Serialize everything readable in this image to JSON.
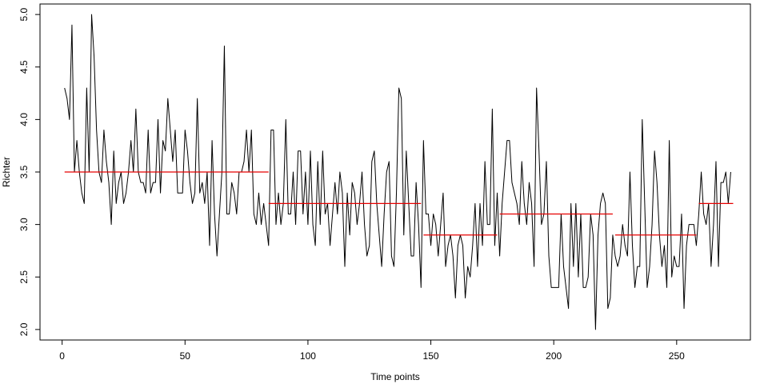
{
  "chart_data": {
    "type": "line",
    "xlabel": "Time points",
    "ylabel": "Richter",
    "xlim": [
      -9,
      280
    ],
    "ylim": [
      1.9,
      5.1
    ],
    "x_ticks": [
      0,
      50,
      100,
      150,
      200,
      250
    ],
    "y_ticks": [
      2.0,
      2.5,
      3.0,
      3.5,
      4.0,
      4.5,
      5.0
    ],
    "y_tick_labels": [
      "2.0",
      "2.5",
      "3.0",
      "3.5",
      "4.0",
      "4.5",
      "5.0"
    ],
    "grid": false,
    "legend": "none",
    "series": [
      {
        "role": "observations",
        "color": "#000000",
        "x_start": 1,
        "values": [
          4.3,
          4.2,
          4.0,
          4.9,
          3.5,
          3.8,
          3.5,
          3.3,
          3.2,
          4.3,
          3.5,
          5.0,
          4.6,
          3.9,
          3.5,
          3.4,
          3.9,
          3.6,
          3.4,
          3.0,
          3.7,
          3.2,
          3.4,
          3.5,
          3.2,
          3.3,
          3.5,
          3.8,
          3.5,
          4.1,
          3.5,
          3.4,
          3.4,
          3.3,
          3.9,
          3.3,
          3.4,
          3.4,
          4.0,
          3.3,
          3.8,
          3.7,
          4.2,
          3.9,
          3.6,
          3.9,
          3.3,
          3.3,
          3.3,
          3.9,
          3.7,
          3.4,
          3.2,
          3.3,
          4.2,
          3.3,
          3.4,
          3.2,
          3.5,
          2.8,
          3.8,
          3.1,
          2.7,
          3.1,
          3.5,
          4.7,
          3.1,
          3.1,
          3.4,
          3.3,
          3.1,
          3.5,
          3.5,
          3.6,
          3.9,
          3.5,
          3.9,
          3.1,
          3.0,
          3.3,
          3.0,
          3.2,
          3.0,
          2.8,
          3.9,
          3.9,
          3.0,
          3.3,
          3.0,
          3.2,
          4.0,
          3.1,
          3.1,
          3.5,
          3.0,
          3.7,
          3.7,
          3.1,
          3.5,
          3.0,
          3.7,
          3.0,
          2.8,
          3.6,
          3.0,
          3.7,
          3.1,
          3.2,
          2.8,
          3.1,
          3.4,
          3.1,
          3.5,
          3.3,
          2.6,
          3.3,
          2.9,
          3.4,
          3.3,
          3.0,
          3.2,
          3.5,
          3.0,
          2.7,
          2.8,
          3.6,
          3.7,
          3.2,
          2.9,
          2.6,
          3.1,
          3.5,
          3.6,
          2.7,
          2.6,
          3.3,
          4.3,
          4.2,
          2.9,
          3.7,
          3.2,
          2.7,
          2.7,
          3.4,
          3.0,
          2.4,
          3.8,
          3.1,
          3.1,
          2.8,
          3.1,
          3.0,
          2.7,
          3.0,
          3.3,
          2.6,
          2.8,
          2.9,
          2.7,
          2.3,
          2.8,
          2.9,
          2.8,
          2.3,
          2.6,
          2.5,
          2.8,
          3.2,
          2.6,
          3.2,
          2.8,
          3.6,
          3.0,
          3.0,
          4.1,
          2.8,
          3.3,
          2.7,
          3.2,
          3.5,
          3.8,
          3.8,
          3.4,
          3.3,
          3.2,
          3.0,
          3.6,
          3.2,
          3.0,
          3.4,
          3.2,
          2.6,
          4.3,
          3.7,
          3.0,
          3.1,
          3.6,
          2.7,
          2.4,
          2.4,
          2.4,
          2.4,
          3.1,
          2.6,
          2.4,
          2.2,
          3.2,
          2.6,
          3.2,
          2.5,
          3.1,
          2.4,
          2.4,
          2.5,
          3.1,
          2.9,
          2.0,
          2.9,
          3.2,
          3.3,
          3.2,
          2.2,
          2.3,
          2.9,
          2.7,
          2.6,
          2.7,
          3.0,
          2.8,
          2.7,
          3.5,
          2.8,
          2.4,
          2.6,
          2.6,
          4.0,
          3.2,
          2.4,
          2.6,
          3.0,
          3.7,
          3.4,
          2.9,
          2.6,
          2.8,
          2.4,
          3.8,
          2.5,
          2.7,
          2.6,
          2.6,
          3.1,
          2.2,
          2.8,
          3.0,
          3.0,
          3.0,
          2.8,
          3.1,
          3.5,
          3.1,
          3.0,
          3.2,
          2.6,
          3.0,
          3.6,
          2.6,
          3.4,
          3.4,
          3.5,
          3.2,
          3.5
        ]
      },
      {
        "role": "segment means",
        "color": "#e60000",
        "segments": [
          {
            "x0": 1,
            "x1": 84,
            "y": 3.5
          },
          {
            "x0": 84,
            "x1": 146,
            "y": 3.2
          },
          {
            "x0": 147,
            "x1": 177,
            "y": 2.9
          },
          {
            "x0": 178,
            "x1": 224,
            "y": 3.1
          },
          {
            "x0": 225,
            "x1": 258,
            "y": 2.9
          },
          {
            "x0": 259,
            "x1": 273,
            "y": 3.2
          }
        ]
      }
    ]
  }
}
